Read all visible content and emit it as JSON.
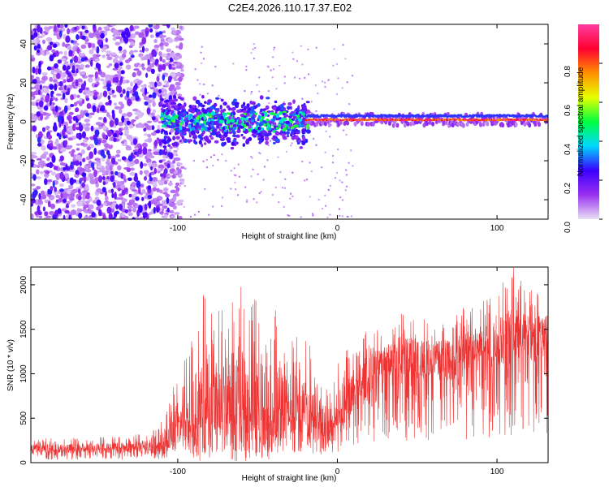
{
  "title": "C2E4.2026.110.17.37.E02",
  "colors": {
    "snr_line": "#ee3333",
    "axis": "#000000",
    "background": "#ffffff"
  },
  "chart_data": [
    {
      "type": "heatmap",
      "xlabel": "Height of straight line (km)",
      "ylabel": "Frequency (Hz)",
      "xlim": [
        -192,
        132
      ],
      "ylim": [
        -50,
        50
      ],
      "xticks": [
        -100,
        0,
        100
      ],
      "yticks": [
        -40,
        -20,
        0,
        20,
        40
      ],
      "colorbar": {
        "label": "Normalized spectral amplitude",
        "range": [
          0,
          1
        ],
        "ticks": [
          "0.0",
          "0.2",
          "0.4",
          "0.6",
          "0.8"
        ],
        "tick_values": [
          0.0,
          0.2,
          0.4,
          0.6,
          0.8
        ],
        "colormap": [
          "#e8e0f5",
          "#9a30f0",
          "#3a00ff",
          "#00d8ff",
          "#00ff40",
          "#e8ff00",
          "#ff9000",
          "#ff0030",
          "#ff3ca0"
        ]
      },
      "regions": [
        {
          "name": "broadband noise",
          "x_range": [
            -192,
            -100
          ],
          "freq_range": [
            -50,
            50
          ],
          "amplitude": 0.1
        },
        {
          "name": "energetic band",
          "x_range": [
            -110,
            -20
          ],
          "freq_range": [
            -12,
            12
          ],
          "amplitude": 0.3
        },
        {
          "name": "narrow line",
          "x_range": [
            -20,
            132
          ],
          "freq_center": 1,
          "amplitude": 0.9
        }
      ]
    },
    {
      "type": "line",
      "xlabel": "Height of straight line (km)",
      "ylabel": "SNR (10 * v/v)",
      "xlim": [
        -192,
        132
      ],
      "ylim": [
        0,
        2200
      ],
      "xticks": [
        -100,
        0,
        100
      ],
      "yticks": [
        0,
        500,
        1000,
        1500,
        2000
      ],
      "series": [
        {
          "name": "SNR",
          "x": [
            -190,
            -170,
            -150,
            -130,
            -112,
            -105,
            -95,
            -85,
            -75,
            -65,
            -55,
            -45,
            -35,
            -25,
            -15,
            -5,
            0,
            10,
            20,
            30,
            40,
            55,
            70,
            85,
            100,
            110,
            120,
            130
          ],
          "mean": [
            160,
            160,
            165,
            170,
            180,
            300,
            450,
            550,
            600,
            600,
            570,
            560,
            560,
            550,
            500,
            350,
            550,
            800,
            1000,
            1150,
            1200,
            1150,
            1150,
            1250,
            1350,
            1400,
            1400,
            1400
          ],
          "peak": [
            270,
            280,
            290,
            300,
            380,
            750,
            1200,
            1900,
            1800,
            2050,
            1900,
            1800,
            1700,
            1500,
            1300,
            900,
            1100,
            1400,
            1500,
            1500,
            1700,
            1650,
            1700,
            1800,
            1950,
            2200,
            1950,
            2000
          ]
        }
      ]
    }
  ]
}
